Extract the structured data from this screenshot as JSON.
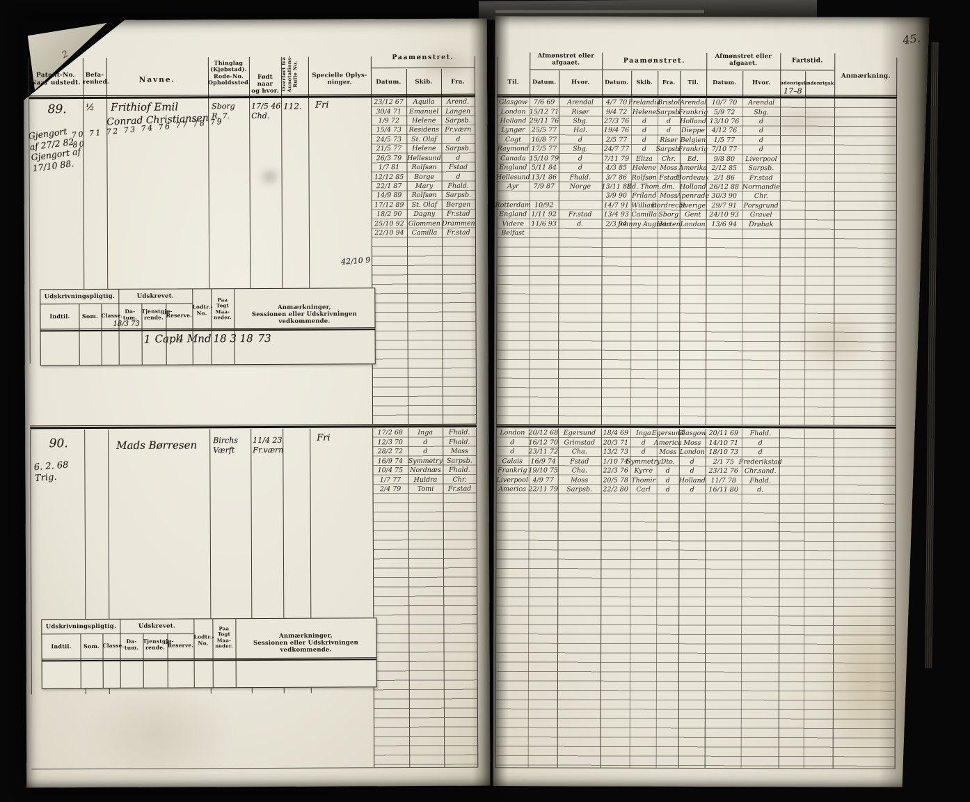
{
  "sheet": {
    "page_number": "45.",
    "corner_pencil_mark": "2"
  },
  "left_page": {
    "columns": {
      "patent": "Patent-No.\nNaar udstedt.",
      "befarenhed": "Befa-\nrenhed.",
      "navne": "Navne.",
      "thinglag": "Thinglag\n(Kjøbstad).\nRode-No.\nOpholdssted.",
      "fodt": "Født naar\nog hvor.",
      "overfort": "Overført fra\nAnnotations-\nRulle No.",
      "specielle": "Specielle Oplys-\nninger.",
      "paamonstret": "Paamønstret.",
      "datum": "Datum.",
      "skib": "Skib.",
      "fra": "Fra."
    },
    "entries": [
      {
        "no": "89.",
        "margin_notes": "Gjengort\naf 27/2 82\nGjengort af\n17/10 88.",
        "befarenhed": "½",
        "aar_rekke": "70 71 72 73 74 76 77 78 79 80",
        "navn": "Frithiof Emil",
        "navn2": "Conrad Christiansen",
        "bosted": "Sborg\nR. 7.",
        "fodt": "17/5 46\nChd.",
        "overfort": "112.",
        "specielle": "Fri",
        "stray": "42/10 9",
        "mustering": [
          [
            "23/12 67",
            "Aquila",
            "Arend."
          ],
          [
            "30/4 71",
            "Emanuel",
            "Langen"
          ],
          [
            "1/9 72",
            "Helene",
            "Sarpsb."
          ],
          [
            "15/4 73",
            "Residens",
            "Fr.værn"
          ],
          [
            "24/5 73",
            "St. Olaf",
            "d"
          ],
          [
            "21/5 77",
            "Helene",
            "Sarpsb."
          ],
          [
            "26/3 79",
            "Hellesund",
            "d"
          ],
          [
            "1/7 81",
            "Rolfsøn",
            "Fstad"
          ],
          [
            "12/12 85",
            "Borge",
            "d"
          ],
          [
            "22/1 87",
            "Mary",
            "Fhald."
          ],
          [
            "14/9 89",
            "Rolfsøn",
            "Sarpsb."
          ],
          [
            "17/12 89",
            "St. Olaf",
            "Bergen"
          ],
          [
            "18/2 90",
            "Dagny",
            "Fr.stad"
          ],
          [
            "25/10 92",
            "Glommen",
            "Drammen"
          ],
          [
            "22/10 94",
            "Camilla",
            "Fr.stad"
          ]
        ]
      },
      {
        "no": "90.",
        "margin_notes": "6. 2. 68\nTrig.",
        "befarenhed": "",
        "aar_rekke": "",
        "navn": "Mads Børresen",
        "navn2": "",
        "bosted": "Birchs\nVærft",
        "fodt": "11/4 23\nFr.værn",
        "overfort": "",
        "specielle": "Fri",
        "stray": "",
        "mustering": [
          [
            "17/2 68",
            "Inga",
            "Fhald."
          ],
          [
            "12/3 70",
            "d",
            "Fhald."
          ],
          [
            "28/2 72",
            "d",
            "Moss"
          ],
          [
            "16/9 74",
            "Symmetry",
            "Sarpsb."
          ],
          [
            "10/4 75",
            "Nordnæs",
            "Fhald."
          ],
          [
            "1/7 77",
            "Huldra",
            "Chr."
          ],
          [
            "2/4 79",
            "Tomi",
            "Fr.stad"
          ]
        ]
      }
    ],
    "udskrivning": {
      "group_pligtig": "Udskrivningspligtig.",
      "group_udskrevet": "Udskrevet.",
      "col_indtil": "Indtil.",
      "col_som": "Som.",
      "col_classe": "Classe.",
      "col_datum": "Da-\ntum.",
      "col_tjenst": "Tjenstgjø-\nrende.",
      "col_reserve": "Reserve.",
      "col_lodtr": "Lodtr.-\nNo.",
      "col_togt": "Paa\nTogt\nMaa-\nneder.",
      "col_anm": "Anmærkninger,\nSessionen eller Udskrivningen vedkommende.",
      "entry89_note": "18/3 73",
      "entry89_row": [
        "1",
        "Capl",
        "4 Mnd",
        "18 3",
        "18",
        "73"
      ]
    }
  },
  "right_page": {
    "headers": {
      "til": "Til.",
      "datum": "Datum.",
      "hvor": "Hvor.",
      "skib": "Skib.",
      "fra": "Fra.",
      "afmonstret": "Afmønstret eller\nafgaaet.",
      "paamonstret": "Paamønstret.",
      "fartstid": "Fartstid.",
      "udenrigsk": "udenrigsk.",
      "indenrigsk": "indenrigsk.",
      "anmaerkning": "Anmærkning.",
      "fartstid_note": "17–8"
    },
    "entry89_rows": [
      [
        "Glasgow",
        "7/6 69",
        "Arendal",
        "4/7 70",
        "Frelandia",
        "Bristol",
        "Arendal",
        "10/7 70",
        "Arendal",
        "",
        "",
        ""
      ],
      [
        "London",
        "15/12 71",
        "Risør",
        "9/4 72",
        "Helene",
        "Sarpsb.",
        "Frankrig",
        "5/9 72",
        "Sbg.",
        "",
        "",
        ""
      ],
      [
        "Holland",
        "29/11 76",
        "Sbg.",
        "27/3 76",
        "d",
        "d",
        "Holland",
        "13/10 76",
        "d",
        "",
        "",
        ""
      ],
      [
        "Lyngør",
        "25/5 77",
        "Hal.",
        "19/4 76",
        "d",
        "d",
        "Dieppe",
        "4/12 76",
        "d",
        "",
        "",
        ""
      ],
      [
        "Cogt",
        "16/8 77",
        "d",
        "2/5 77",
        "d",
        "Risør",
        "Belgien",
        "1/5 77",
        "d",
        "",
        "",
        ""
      ],
      [
        "Raymond",
        "17/5 77",
        "Sbg.",
        "24/7 77",
        "d",
        "Sarpsb.",
        "Frankrig",
        "7/10 77",
        "d",
        "",
        "",
        ""
      ],
      [
        "Canada",
        "15/10 79",
        "d",
        "7/11 79",
        "Eliza",
        "Chr.",
        "Ed.",
        "9/8 80",
        "Liverpool",
        "",
        "",
        ""
      ],
      [
        "England",
        "5/11 84",
        "d",
        "4/3 85",
        "Helene",
        "Moss",
        "Amerika",
        "2/12 85",
        "Sarpsb.",
        "",
        "",
        ""
      ],
      [
        "Hellesund",
        "13/1 86",
        "Fhald.",
        "3/7 86",
        "Rolfsøn",
        "Fstad",
        "Bordeaux",
        "2/1 86",
        "Fr.stad",
        "",
        "",
        ""
      ],
      [
        "Ayr",
        "7/9 87",
        "Norge",
        "13/11 88",
        "Ed. Thom.",
        "dm.",
        "Holland",
        "26/12 88",
        "Normandie",
        "",
        "",
        ""
      ],
      [
        "",
        "",
        "",
        "3/9 90",
        "Friland",
        "Moss",
        "Apenrade",
        "30/3 90",
        "Chr.",
        "",
        "",
        ""
      ],
      [
        "Rotterdam",
        "10/92",
        "",
        "14/7 91",
        "William",
        "Dordrecht",
        "Sverige",
        "29/7 91",
        "Porsgrund",
        "",
        "",
        ""
      ],
      [
        "England",
        "1/11 92",
        "Fr.stad",
        "13/4 93",
        "Camilla",
        "Sborg",
        "Gent",
        "24/10 93",
        "Gravel",
        "",
        "",
        ""
      ],
      [
        "Videre",
        "11/6 93",
        "d.",
        "2/3 94",
        "Johnny Augusta",
        "Horten",
        "London",
        "13/6 94",
        "Drøbak",
        "",
        "",
        ""
      ],
      [
        "Belfast",
        "",
        "",
        "",
        "",
        "",
        "",
        "",
        "",
        "",
        "",
        ""
      ]
    ],
    "entry90_rows": [
      [
        "London",
        "20/12 68",
        "Egersund",
        "18/4 69",
        "Inga",
        "Egersund",
        "Glasgow",
        "20/11 69",
        "Fhald.",
        "",
        "",
        ""
      ],
      [
        "d",
        "16/12 70",
        "Grimstad",
        "20/3 71",
        "d",
        "America",
        "Moss",
        "14/10 71",
        "d",
        "",
        "",
        ""
      ],
      [
        "d",
        "23/11 72",
        "Cha.",
        "13/2 73",
        "d",
        "Moss",
        "London",
        "18/10 73",
        "d",
        "",
        "",
        ""
      ],
      [
        "Calais",
        "16/9 74",
        "Fstad",
        "1/10 74",
        "Symmetry",
        "Dto.",
        "d",
        "2/1 75",
        "Frederikstad",
        "",
        "",
        ""
      ],
      [
        "Frankrig",
        "19/10 75",
        "Cha.",
        "22/3 76",
        "Kyrre",
        "d",
        "d",
        "23/12 76",
        "Chr.sand.",
        "",
        "",
        ""
      ],
      [
        "Liverpool",
        "4/9 77",
        "Moss",
        "20/5 78",
        "Thomir",
        "d",
        "Holland",
        "11/7 78",
        "Fhald.",
        "",
        "",
        ""
      ],
      [
        "America",
        "22/11 79",
        "Sarpsb.",
        "22/2 80",
        "Carl",
        "d",
        "d",
        "16/11 80",
        "d.",
        "",
        "",
        ""
      ]
    ]
  }
}
